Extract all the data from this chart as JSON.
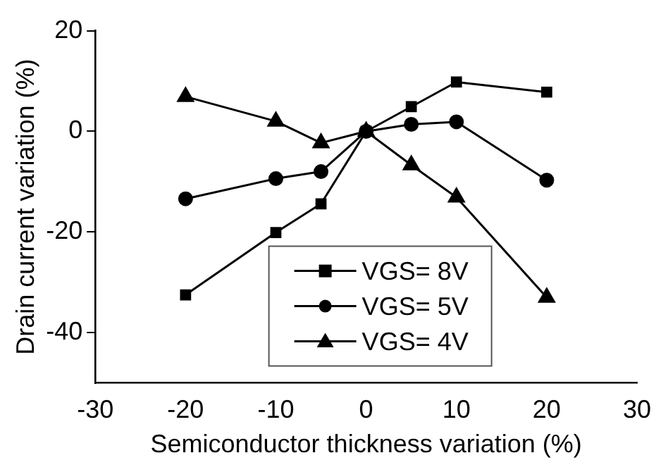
{
  "chart_data": {
    "type": "line",
    "xlabel": "Semiconductor thickness variation (%)",
    "ylabel": "Drain current variation (%)",
    "x": [
      -20,
      -10,
      -5,
      0,
      5,
      10,
      20
    ],
    "xlim": [
      -30,
      30
    ],
    "xticks": [
      -30,
      -20,
      -10,
      0,
      10,
      20,
      30
    ],
    "ylim": [
      -50,
      20
    ],
    "yticks": [
      -40,
      -20,
      0,
      20
    ],
    "grid": false,
    "legend": "bottom",
    "line_style": "solid",
    "series": [
      {
        "name": "VGS= 8V",
        "color": "#000000",
        "marker": "square",
        "values": [
          -32.5,
          -20.1,
          -14.4,
          0,
          4.9,
          9.8,
          7.8
        ]
      },
      {
        "name": "VGS= 5V",
        "color": "#000000",
        "marker": "circle",
        "values": [
          -13.4,
          -9.4,
          -8,
          0,
          1.4,
          1.9,
          -9.7
        ]
      },
      {
        "name": "VGS= 4V",
        "color": "#000000",
        "marker": "triangle",
        "values": [
          6.9,
          2,
          -2.3,
          0,
          -6.7,
          -13.1,
          -33
        ]
      }
    ]
  }
}
